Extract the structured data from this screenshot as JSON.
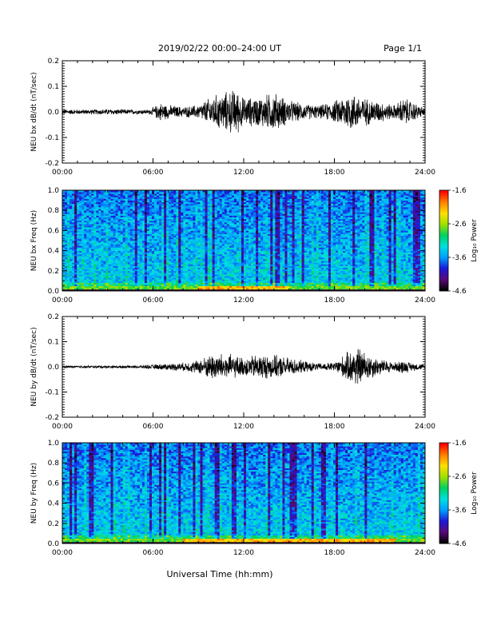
{
  "header": {
    "title": "2019/02/22  00:00–24:00 UT",
    "page": "Page 1/1"
  },
  "footer": {
    "xlabel": "Universal Time (hh:mm)"
  },
  "colorbar": {
    "label": "Log₁₀ Power",
    "tick_labels": [
      "-1.6",
      "-2.6",
      "-3.6",
      "-4.6"
    ],
    "range": [
      -4.6,
      -1.6
    ],
    "colors": [
      "#000000",
      "#5a0a7a",
      "#1a1ad8",
      "#00a0ff",
      "#00e0e0",
      "#00d060",
      "#a0e000",
      "#ffe000",
      "#ff8000",
      "#ff0000"
    ]
  },
  "chart_data": [
    {
      "type": "line",
      "ylabel": "NEU bx dB/dt (nT/sec)",
      "xlim": [
        0,
        24
      ],
      "ylim": [
        -0.2,
        0.2
      ],
      "x_tick_labels": [
        "00:00",
        "06:00",
        "12:00",
        "18:00",
        "24:00"
      ],
      "y_tick_labels": [
        "-0.2",
        "-0.1",
        "0.0",
        "0.1",
        "0.2"
      ],
      "envelope": {
        "hours": [
          0,
          1,
          2,
          3,
          4,
          5,
          5.8,
          6.5,
          7,
          8,
          9,
          9.5,
          10,
          11,
          11.5,
          12,
          13,
          14,
          15,
          16,
          17,
          18,
          18.5,
          19,
          20,
          21,
          22,
          22.5,
          23,
          24
        ],
        "amplitude": [
          0.012,
          0.01,
          0.011,
          0.013,
          0.011,
          0.01,
          0.01,
          0.04,
          0.03,
          0.022,
          0.03,
          0.05,
          0.07,
          0.09,
          0.1,
          0.06,
          0.065,
          0.085,
          0.05,
          0.035,
          0.028,
          0.045,
          0.065,
          0.085,
          0.06,
          0.045,
          0.03,
          0.06,
          0.05,
          0.015
        ]
      }
    },
    {
      "type": "heatmap",
      "ylabel": "NEU bx Freq (Hz)",
      "xlim": [
        0,
        24
      ],
      "ylim": [
        0,
        1
      ],
      "x_tick_labels": [
        "00:00",
        "06:00",
        "12:00",
        "18:00",
        "24:00"
      ],
      "y_tick_labels": [
        "0.0",
        "0.2",
        "0.4",
        "0.6",
        "0.8",
        "1.0"
      ],
      "z_range": [
        -4.6,
        -1.6
      ],
      "low_freq_enhancement_hours": [
        9,
        15
      ]
    },
    {
      "type": "line",
      "ylabel": "NEU by dB/dt (nT/sec)",
      "xlim": [
        0,
        24
      ],
      "ylim": [
        -0.2,
        0.2
      ],
      "x_tick_labels": [
        "00:00",
        "06:00",
        "12:00",
        "18:00",
        "24:00"
      ],
      "y_tick_labels": [
        "-0.2",
        "-0.1",
        "0.0",
        "0.1",
        "0.2"
      ],
      "envelope": {
        "hours": [
          0,
          1,
          2,
          3,
          4,
          5,
          6,
          7,
          8,
          9,
          9.5,
          10,
          11,
          12,
          13,
          14,
          15,
          16,
          17,
          18,
          19,
          19.5,
          20,
          21,
          22,
          22.5,
          23,
          24
        ],
        "amplitude": [
          0.006,
          0.005,
          0.006,
          0.006,
          0.006,
          0.006,
          0.01,
          0.015,
          0.018,
          0.03,
          0.045,
          0.06,
          0.055,
          0.04,
          0.055,
          0.05,
          0.04,
          0.025,
          0.015,
          0.02,
          0.07,
          0.09,
          0.065,
          0.035,
          0.02,
          0.03,
          0.02,
          0.01
        ]
      }
    },
    {
      "type": "heatmap",
      "ylabel": "NEU by Freq (Hz)",
      "xlim": [
        0,
        24
      ],
      "ylim": [
        0,
        1
      ],
      "x_tick_labels": [
        "00:00",
        "06:00",
        "12:00",
        "18:00",
        "24:00"
      ],
      "y_tick_labels": [
        "0.0",
        "0.2",
        "0.4",
        "0.6",
        "0.8",
        "1.0"
      ],
      "z_range": [
        -4.6,
        -1.6
      ],
      "low_freq_enhancement_hours": [
        8,
        22
      ]
    }
  ]
}
